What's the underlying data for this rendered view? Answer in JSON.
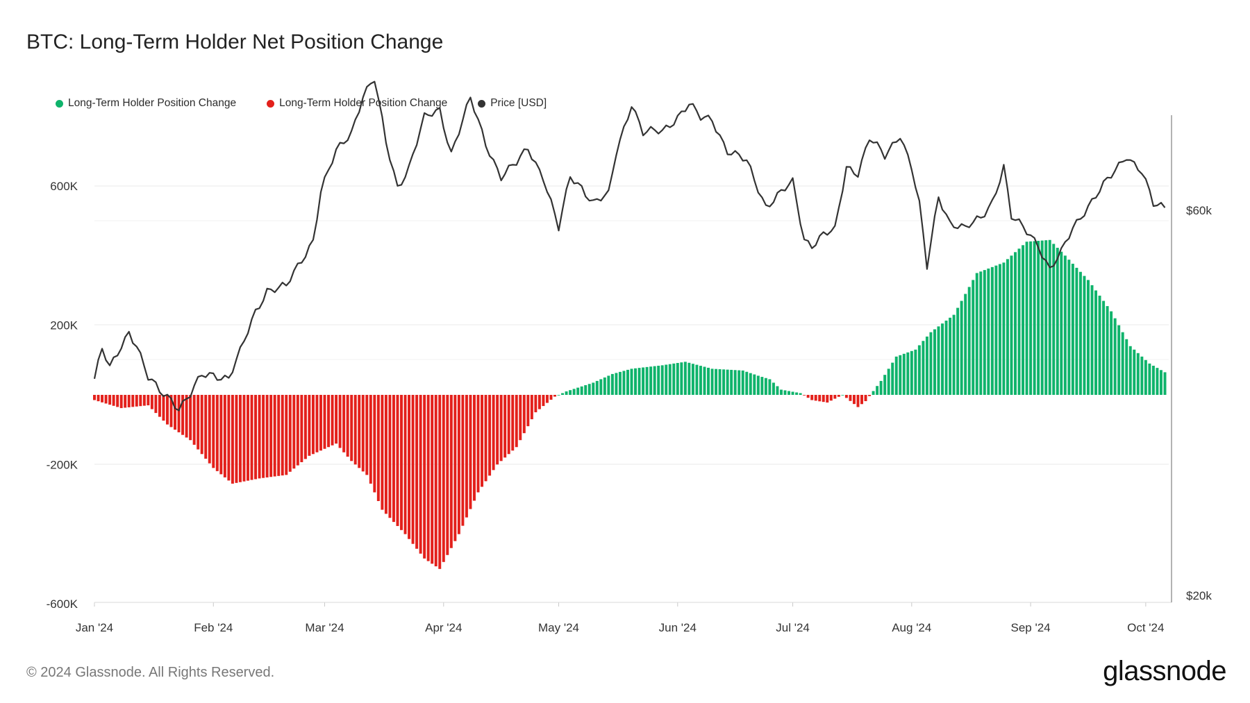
{
  "title": "BTC: Long-Term Holder Net Position Change",
  "legend": [
    {
      "label": "Long-Term Holder Position Change",
      "color": "#0fb36b"
    },
    {
      "label": "Long-Term Holder Position Change",
      "color": "#e3201b"
    },
    {
      "label": "Price [USD]",
      "color": "#333333"
    }
  ],
  "footer": "© 2024 Glassnode. All Rights Reserved.",
  "logo": "glassnode",
  "chart_data": {
    "type": "bar",
    "x_ticks": [
      "Jan '24",
      "Feb '24",
      "Mar '24",
      "Apr '24",
      "May '24",
      "Jun '24",
      "Jul '24",
      "Aug '24",
      "Sep '24",
      "Oct '24"
    ],
    "y_left_ticks": [
      "600K",
      "200K",
      "-200K",
      "-600K"
    ],
    "y_right_ticks": [
      "$60k",
      "$20k"
    ],
    "ylim_left": [
      -600000,
      600000
    ],
    "grid": true,
    "legend_position": "top-left",
    "colors": {
      "positive": "#0fb36b",
      "negative": "#e3201b",
      "price": "#333333"
    },
    "bar_series": {
      "name": "Long-Term Holder Position Change",
      "unit": "BTC",
      "anchors": [
        [
          "2024-01-01",
          -15000
        ],
        [
          "2024-01-08",
          -38000
        ],
        [
          "2024-01-15",
          -30000
        ],
        [
          "2024-01-20",
          -85000
        ],
        [
          "2024-01-26",
          -130000
        ],
        [
          "2024-02-01",
          -210000
        ],
        [
          "2024-02-06",
          -255000
        ],
        [
          "2024-02-13",
          -240000
        ],
        [
          "2024-02-20",
          -230000
        ],
        [
          "2024-02-26",
          -175000
        ],
        [
          "2024-03-04",
          -140000
        ],
        [
          "2024-03-08",
          -190000
        ],
        [
          "2024-03-12",
          -230000
        ],
        [
          "2024-03-16",
          -330000
        ],
        [
          "2024-03-22",
          -400000
        ],
        [
          "2024-03-27",
          -470000
        ],
        [
          "2024-03-31",
          -500000
        ],
        [
          "2024-04-05",
          -400000
        ],
        [
          "2024-04-10",
          -280000
        ],
        [
          "2024-04-15",
          -200000
        ],
        [
          "2024-04-20",
          -150000
        ],
        [
          "2024-04-25",
          -50000
        ],
        [
          "2024-04-30",
          -5000
        ],
        [
          "2024-05-03",
          10000
        ],
        [
          "2024-05-10",
          35000
        ],
        [
          "2024-05-15",
          60000
        ],
        [
          "2024-05-20",
          75000
        ],
        [
          "2024-05-28",
          85000
        ],
        [
          "2024-06-03",
          95000
        ],
        [
          "2024-06-10",
          75000
        ],
        [
          "2024-06-18",
          70000
        ],
        [
          "2024-06-22",
          55000
        ],
        [
          "2024-06-25",
          45000
        ],
        [
          "2024-06-28",
          15000
        ],
        [
          "2024-07-03",
          5000
        ],
        [
          "2024-07-06",
          -15000
        ],
        [
          "2024-07-10",
          -22000
        ],
        [
          "2024-07-14",
          0
        ],
        [
          "2024-07-18",
          -35000
        ],
        [
          "2024-07-20",
          -18000
        ],
        [
          "2024-07-24",
          40000
        ],
        [
          "2024-07-28",
          110000
        ],
        [
          "2024-08-02",
          130000
        ],
        [
          "2024-08-06",
          180000
        ],
        [
          "2024-08-12",
          230000
        ],
        [
          "2024-08-18",
          350000
        ],
        [
          "2024-08-25",
          380000
        ],
        [
          "2024-08-31",
          440000
        ],
        [
          "2024-09-06",
          445000
        ],
        [
          "2024-09-10",
          400000
        ],
        [
          "2024-09-16",
          330000
        ],
        [
          "2024-09-22",
          240000
        ],
        [
          "2024-09-27",
          140000
        ],
        [
          "2024-10-02",
          90000
        ],
        [
          "2024-10-06",
          65000
        ]
      ]
    },
    "line_series": {
      "name": "Price [USD]",
      "anchors": [
        [
          "2024-01-01",
          42500
        ],
        [
          "2024-01-03",
          45500
        ],
        [
          "2024-01-05",
          43500
        ],
        [
          "2024-01-08",
          46000
        ],
        [
          "2024-01-10",
          47500
        ],
        [
          "2024-01-12",
          46000
        ],
        [
          "2024-01-15",
          42500
        ],
        [
          "2024-01-18",
          41200
        ],
        [
          "2024-01-21",
          40500
        ],
        [
          "2024-01-23",
          39500
        ],
        [
          "2024-01-26",
          40800
        ],
        [
          "2024-01-29",
          42800
        ],
        [
          "2024-02-01",
          43000
        ],
        [
          "2024-02-05",
          42600
        ],
        [
          "2024-02-08",
          45200
        ],
        [
          "2024-02-12",
          49500
        ],
        [
          "2024-02-15",
          51800
        ],
        [
          "2024-02-20",
          52000
        ],
        [
          "2024-02-27",
          57000
        ],
        [
          "2024-02-29",
          62000
        ],
        [
          "2024-03-04",
          66000
        ],
        [
          "2024-03-08",
          68200
        ],
        [
          "2024-03-11",
          72000
        ],
        [
          "2024-03-14",
          73500
        ],
        [
          "2024-03-17",
          67000
        ],
        [
          "2024-03-20",
          62500
        ],
        [
          "2024-03-23",
          64500
        ],
        [
          "2024-03-27",
          69500
        ],
        [
          "2024-03-31",
          70500
        ],
        [
          "2024-04-03",
          66000
        ],
        [
          "2024-04-08",
          71500
        ],
        [
          "2024-04-12",
          67000
        ],
        [
          "2024-04-16",
          63500
        ],
        [
          "2024-04-20",
          64800
        ],
        [
          "2024-04-23",
          66500
        ],
        [
          "2024-04-27",
          63500
        ],
        [
          "2024-05-01",
          58000
        ],
        [
          "2024-05-04",
          63500
        ],
        [
          "2024-05-07",
          62500
        ],
        [
          "2024-05-10",
          60800
        ],
        [
          "2024-05-14",
          61500
        ],
        [
          "2024-05-16",
          66000
        ],
        [
          "2024-05-20",
          71200
        ],
        [
          "2024-05-23",
          68000
        ],
        [
          "2024-05-28",
          68200
        ],
        [
          "2024-06-04",
          71000
        ],
        [
          "2024-06-07",
          69500
        ],
        [
          "2024-06-10",
          69500
        ],
        [
          "2024-06-14",
          66200
        ],
        [
          "2024-06-19",
          65000
        ],
        [
          "2024-06-24",
          60500
        ],
        [
          "2024-06-27",
          61500
        ],
        [
          "2024-07-01",
          62800
        ],
        [
          "2024-07-04",
          57000
        ],
        [
          "2024-07-06",
          56500
        ],
        [
          "2024-07-09",
          57500
        ],
        [
          "2024-07-12",
          57800
        ],
        [
          "2024-07-15",
          64500
        ],
        [
          "2024-07-18",
          64000
        ],
        [
          "2024-07-21",
          67500
        ],
        [
          "2024-07-25",
          65500
        ],
        [
          "2024-07-29",
          68000
        ],
        [
          "2024-08-01",
          64500
        ],
        [
          "2024-08-03",
          60500
        ],
        [
          "2024-08-05",
          54000
        ],
        [
          "2024-08-08",
          61500
        ],
        [
          "2024-08-11",
          58800
        ],
        [
          "2024-08-15",
          58000
        ],
        [
          "2024-08-19",
          59200
        ],
        [
          "2024-08-22",
          61000
        ],
        [
          "2024-08-25",
          64500
        ],
        [
          "2024-08-27",
          59200
        ],
        [
          "2024-09-01",
          57500
        ],
        [
          "2024-09-03",
          56500
        ],
        [
          "2024-09-06",
          53800
        ],
        [
          "2024-09-09",
          55500
        ],
        [
          "2024-09-12",
          58200
        ],
        [
          "2024-09-15",
          60000
        ],
        [
          "2024-09-18",
          61500
        ],
        [
          "2024-09-22",
          63500
        ],
        [
          "2024-09-26",
          65800
        ],
        [
          "2024-09-30",
          64000
        ],
        [
          "2024-10-03",
          60500
        ],
        [
          "2024-10-06",
          60300
        ]
      ]
    }
  }
}
